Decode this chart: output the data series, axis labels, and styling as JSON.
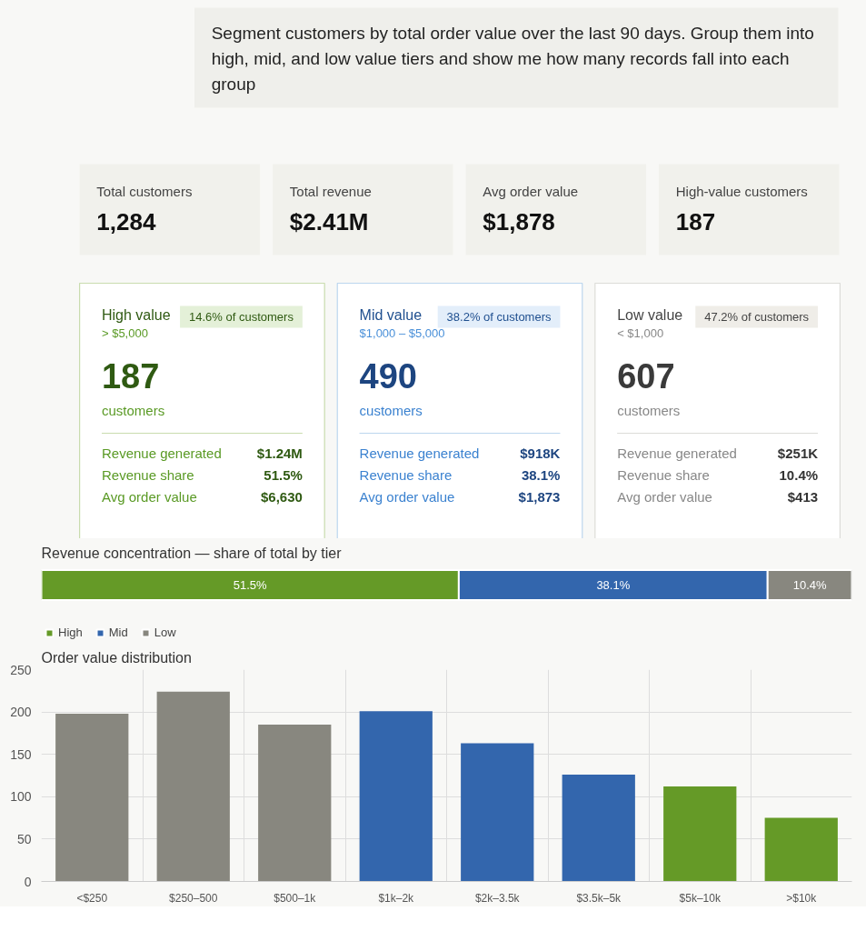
{
  "chart_data": [
    {
      "type": "other",
      "annotations": [
        "Segment customers by total order value over the last 90 days. Group them into high, mid, and low value tiers and show me how many records fall into each group",
        "Total customers",
        "1,284",
        "Total revenue",
        "$2.41M",
        "Avg order value",
        "$1,878",
        "High-value customers",
        "187",
        "High value",
        "> $5,000",
        "14.6% of customers",
        "187",
        "customers",
        "Revenue generated",
        "$1.24M",
        "Revenue share",
        "51.5%",
        "Avg order value",
        "$6,630",
        "Mid value",
        "$1,000 – $5,000",
        "38.2% of customers",
        "490",
        "customers",
        "Revenue generated",
        "$918K",
        "Revenue share",
        "38.1%",
        "Avg order value",
        "$1,873",
        "Low value",
        "< $1,000",
        "47.2% of customers",
        "607",
        "customers",
        "Revenue generated",
        "$251K",
        "Revenue share",
        "10.4%",
        "Avg order value",
        "$413"
      ]
    },
    {
      "type": "bar",
      "title": "Revenue concentration — share of total by tier",
      "orientation": "horizontal",
      "stacked": true,
      "categories": [
        null
      ],
      "xlim": [
        0,
        100
      ],
      "tick_labels": false,
      "legend": "bottom left",
      "series": [
        {
          "name": "High",
          "color": "#659a27",
          "values": [
            51.5
          ],
          "value_labels": [
            "51.5%"
          ]
        },
        {
          "name": "Mid",
          "color": "#3366ad",
          "values": [
            38.1
          ],
          "value_labels": [
            "38.1%"
          ]
        },
        {
          "name": "Low",
          "color": "#88877f",
          "values": [
            10.4
          ],
          "value_labels": [
            "10.4%"
          ]
        }
      ]
    },
    {
      "type": "bar",
      "title": "Order value distribution",
      "categories": [
        "<$250",
        "$250–500",
        "$500–1k",
        "$1k–2k",
        "$2k–3.5k",
        "$3.5k–5k",
        "$5k–10k",
        ">$10k"
      ],
      "values": [
        198,
        224,
        185,
        201,
        163,
        126,
        112,
        75
      ],
      "colors": [
        "#88877f",
        "#88877f",
        "#88877f",
        "#3366ad",
        "#3366ad",
        "#3366ad",
        "#659a27",
        "#659a27"
      ],
      "ylim": [
        0,
        250
      ],
      "yticks": [
        0,
        50,
        100,
        150,
        200,
        250
      ],
      "grid": true
    }
  ]
}
